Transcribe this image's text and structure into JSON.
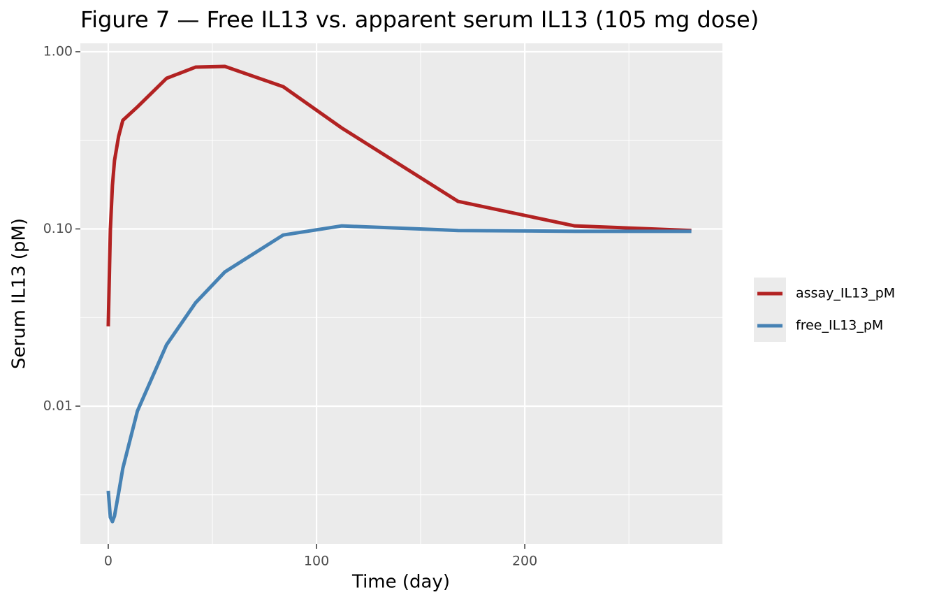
{
  "chart_data": {
    "type": "line",
    "title": "Figure 7 — Free IL13 vs. apparent serum IL13 (105 mg dose)",
    "x_label": "Time (day)",
    "y_label": "Serum IL13 (pM)",
    "log_y": true,
    "grid": true,
    "legend": "right",
    "x": [
      0,
      1,
      2,
      3,
      5,
      7,
      14,
      28,
      42,
      56,
      84,
      112,
      168,
      224,
      280
    ],
    "series": [
      {
        "name": "assay_IL13_pM",
        "color": "#b22222",
        "values": [
          0.0282,
          0.098,
          0.176,
          0.243,
          0.334,
          0.41,
          0.488,
          0.708,
          0.819,
          0.826,
          0.635,
          0.372,
          0.143,
          0.104,
          0.098
        ]
      },
      {
        "name": "free_IL13_pM",
        "color": "#4682b4",
        "values": [
          0.00333,
          0.00236,
          0.00223,
          0.0024,
          0.00325,
          0.00446,
          0.00938,
          0.0222,
          0.0384,
          0.0572,
          0.0924,
          0.104,
          0.098,
          0.097,
          0.097
        ]
      }
    ],
    "xlim": [
      -13.4,
      294.9
    ],
    "ylim": [
      0.00167,
      1.115
    ],
    "xticks": [
      0,
      100,
      200
    ],
    "yticks": [
      {
        "value": 1,
        "label": "1.00"
      },
      {
        "value": 0.1,
        "label": "0.10"
      },
      {
        "value": 0.01,
        "label": "0.01"
      }
    ],
    "x_minor_breaks": [
      50,
      150,
      250
    ],
    "y_minor_breaks": [
      0.316,
      0.0316,
      0.00316
    ]
  }
}
